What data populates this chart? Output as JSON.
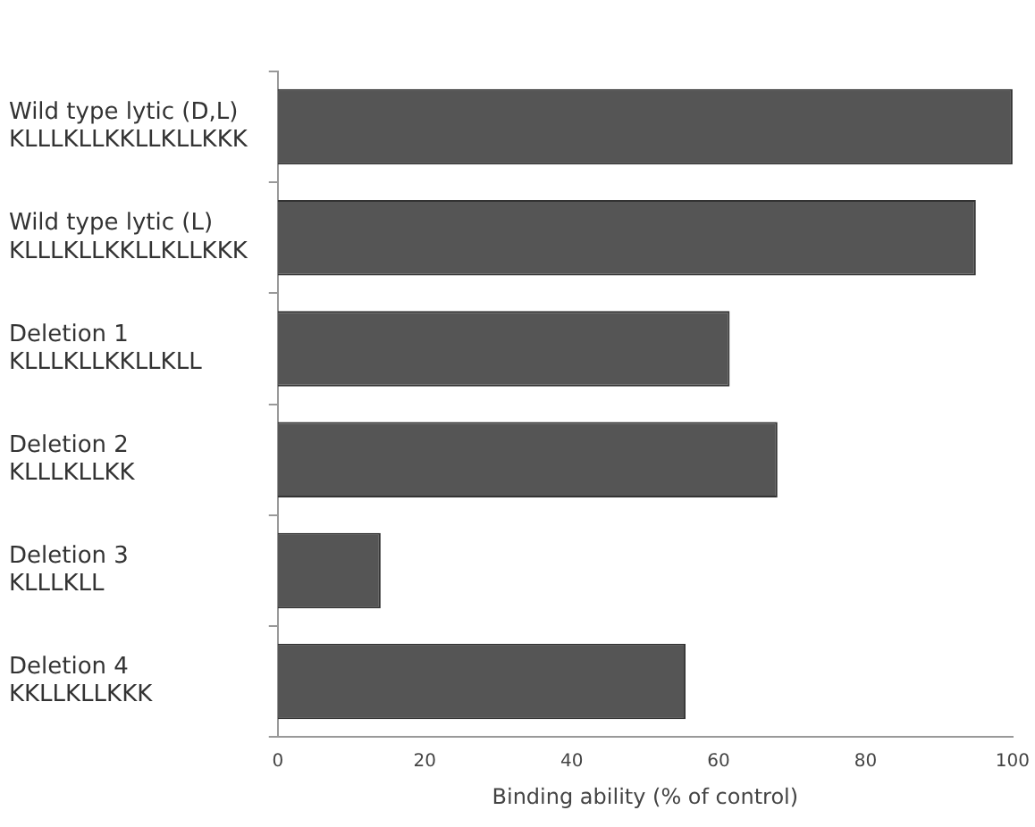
{
  "chart_data": {
    "type": "bar",
    "orientation": "horizontal",
    "categories": [
      "Wild type lytic (D,L)\nKLLLKLLKKLLKLLKKK",
      "Wild type lytic (L)\nKLLLKLLKKLLKLLKKK",
      "Deletion 1\nKLLLKLLKKLLKLL",
      "Deletion 2\nKLLLKLLKK",
      "Deletion 3\nKLLLKLL",
      "Deletion 4\nKKLLKLLKKK"
    ],
    "values": [
      100,
      95,
      61.5,
      68,
      14,
      55.5
    ],
    "color": "#555555",
    "xlim": [
      0,
      100
    ],
    "xticks": [
      0,
      20,
      40,
      60,
      80,
      100
    ],
    "xlabel": "Binding ability (% of control)",
    "grid": false,
    "legend": false
  }
}
